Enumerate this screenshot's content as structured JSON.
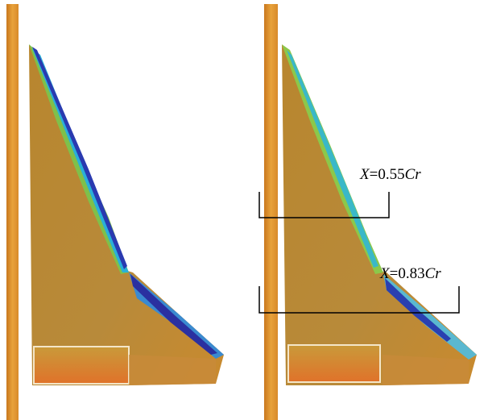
{
  "annotations": [
    {
      "variable": "X",
      "value": "=0.55",
      "unit": "Cr"
    },
    {
      "variable": "X",
      "value": "=0.83",
      "unit": "Cr"
    }
  ]
}
